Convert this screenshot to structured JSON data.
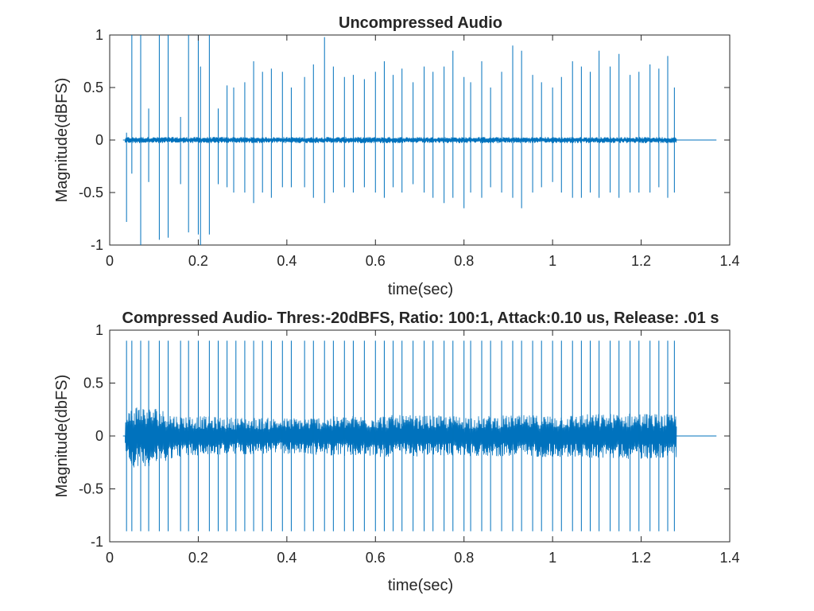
{
  "colors": {
    "series": "#0072BD",
    "axes": "#262626",
    "background": "#ffffff"
  },
  "chart_data": [
    {
      "type": "line",
      "title": "Uncompressed Audio",
      "xlabel": "time(sec)",
      "ylabel": "Magnitude(dBFS)",
      "xlim": [
        0,
        1.4
      ],
      "ylim": [
        -1,
        1
      ],
      "xticks": [
        0,
        0.2,
        0.4,
        0.6,
        0.8,
        1,
        1.2,
        1.4
      ],
      "xtick_labels": [
        "0",
        "0.2",
        "0.4",
        "0.6",
        "0.8",
        "1",
        "1.2",
        "1.4"
      ],
      "yticks": [
        -1,
        -0.5,
        0,
        0.5,
        1
      ],
      "ytick_labels": [
        "-1",
        "-0.5",
        "0",
        "0.5",
        "1"
      ],
      "grid": false,
      "series": [
        {
          "signal_start": 0.035,
          "signal_end": 1.28,
          "trace_end": 1.37,
          "noise_floor": 0.03,
          "spikes": [
            {
              "t": 0.038,
              "max": 0.07,
              "min": -0.78
            },
            {
              "t": 0.05,
              "max": 1.0,
              "min": -0.32
            },
            {
              "t": 0.07,
              "max": 1.0,
              "min": -1.0
            },
            {
              "t": 0.088,
              "max": 0.3,
              "min": -0.4
            },
            {
              "t": 0.112,
              "max": 1.0,
              "min": -0.95
            },
            {
              "t": 0.132,
              "max": 1.0,
              "min": -0.93
            },
            {
              "t": 0.16,
              "max": 0.22,
              "min": -0.42
            },
            {
              "t": 0.178,
              "max": 1.0,
              "min": -0.88
            },
            {
              "t": 0.2,
              "max": 1.0,
              "min": -0.9
            },
            {
              "t": 0.205,
              "max": 0.7,
              "min": -1.0
            },
            {
              "t": 0.225,
              "max": 1.0,
              "min": -0.9
            },
            {
              "t": 0.245,
              "max": 0.3,
              "min": -0.42
            },
            {
              "t": 0.265,
              "max": 0.52,
              "min": -0.45
            },
            {
              "t": 0.28,
              "max": 0.5,
              "min": -0.5
            },
            {
              "t": 0.305,
              "max": 0.55,
              "min": -0.5
            },
            {
              "t": 0.325,
              "max": 0.75,
              "min": -0.6
            },
            {
              "t": 0.345,
              "max": 0.65,
              "min": -0.5
            },
            {
              "t": 0.365,
              "max": 0.68,
              "min": -0.55
            },
            {
              "t": 0.39,
              "max": 0.65,
              "min": -0.45
            },
            {
              "t": 0.41,
              "max": 0.5,
              "min": -0.45
            },
            {
              "t": 0.44,
              "max": 0.6,
              "min": -0.45
            },
            {
              "t": 0.46,
              "max": 0.72,
              "min": -0.55
            },
            {
              "t": 0.485,
              "max": 0.98,
              "min": -0.6
            },
            {
              "t": 0.505,
              "max": 0.7,
              "min": -0.5
            },
            {
              "t": 0.53,
              "max": 0.6,
              "min": -0.45
            },
            {
              "t": 0.55,
              "max": 0.62,
              "min": -0.5
            },
            {
              "t": 0.575,
              "max": 0.58,
              "min": -0.45
            },
            {
              "t": 0.6,
              "max": 0.65,
              "min": -0.5
            },
            {
              "t": 0.62,
              "max": 0.75,
              "min": -0.55
            },
            {
              "t": 0.64,
              "max": 0.62,
              "min": -0.45
            },
            {
              "t": 0.66,
              "max": 0.68,
              "min": -0.5
            },
            {
              "t": 0.685,
              "max": 0.55,
              "min": -0.42
            },
            {
              "t": 0.71,
              "max": 0.7,
              "min": -0.5
            },
            {
              "t": 0.73,
              "max": 0.65,
              "min": -0.55
            },
            {
              "t": 0.755,
              "max": 0.7,
              "min": -0.6
            },
            {
              "t": 0.775,
              "max": 0.85,
              "min": -0.55
            },
            {
              "t": 0.8,
              "max": 0.6,
              "min": -0.65
            },
            {
              "t": 0.815,
              "max": 0.55,
              "min": -0.5
            },
            {
              "t": 0.84,
              "max": 0.75,
              "min": -0.55
            },
            {
              "t": 0.86,
              "max": 0.5,
              "min": -0.45
            },
            {
              "t": 0.885,
              "max": 0.65,
              "min": -0.5
            },
            {
              "t": 0.91,
              "max": 0.9,
              "min": -0.55
            },
            {
              "t": 0.93,
              "max": 0.85,
              "min": -0.65
            },
            {
              "t": 0.955,
              "max": 0.62,
              "min": -0.5
            },
            {
              "t": 0.975,
              "max": 0.55,
              "min": -0.45
            },
            {
              "t": 1.0,
              "max": 0.5,
              "min": -0.4
            },
            {
              "t": 1.02,
              "max": 0.6,
              "min": -0.5
            },
            {
              "t": 1.045,
              "max": 0.75,
              "min": -0.55
            },
            {
              "t": 1.065,
              "max": 0.7,
              "min": -0.55
            },
            {
              "t": 1.085,
              "max": 0.65,
              "min": -0.5
            },
            {
              "t": 1.105,
              "max": 0.85,
              "min": -0.55
            },
            {
              "t": 1.13,
              "max": 0.7,
              "min": -0.5
            },
            {
              "t": 1.15,
              "max": 0.82,
              "min": -0.55
            },
            {
              "t": 1.175,
              "max": 0.62,
              "min": -0.5
            },
            {
              "t": 1.195,
              "max": 0.65,
              "min": -0.5
            },
            {
              "t": 1.22,
              "max": 0.72,
              "min": -0.5
            },
            {
              "t": 1.24,
              "max": 0.68,
              "min": -0.45
            },
            {
              "t": 1.26,
              "max": 0.8,
              "min": -0.55
            },
            {
              "t": 1.275,
              "max": 0.5,
              "min": -0.5
            }
          ]
        }
      ]
    },
    {
      "type": "line",
      "title": "Compressed Audio- Thres:-20dBFS, Ratio: 100:1, Attack:0.10 us, Release: .01 s",
      "xlabel": "time(sec)",
      "ylabel": "Magnitude(dbFS)",
      "xlim": [
        0,
        1.4
      ],
      "ylim": [
        -1,
        1
      ],
      "xticks": [
        0,
        0.2,
        0.4,
        0.6,
        0.8,
        1,
        1.2,
        1.4
      ],
      "xtick_labels": [
        "0",
        "0.2",
        "0.4",
        "0.6",
        "0.8",
        "1",
        "1.2",
        "1.4"
      ],
      "yticks": [
        -1,
        -0.5,
        0,
        0.5,
        1
      ],
      "ytick_labels": [
        "-1",
        "-0.5",
        "0",
        "0.5",
        "1"
      ],
      "grid": false,
      "series": [
        {
          "signal_start": 0.035,
          "signal_end": 1.28,
          "trace_end": 1.37,
          "envelope": [
            {
              "t": 0.035,
              "a": 0.15
            },
            {
              "t": 0.05,
              "a": 0.3
            },
            {
              "t": 0.1,
              "a": 0.28
            },
            {
              "t": 0.15,
              "a": 0.2
            },
            {
              "t": 0.25,
              "a": 0.18
            },
            {
              "t": 0.4,
              "a": 0.17
            },
            {
              "t": 0.6,
              "a": 0.2
            },
            {
              "t": 0.8,
              "a": 0.19
            },
            {
              "t": 1.0,
              "a": 0.2
            },
            {
              "t": 1.2,
              "a": 0.22
            },
            {
              "t": 1.28,
              "a": 0.2
            }
          ],
          "spike_max": 0.9,
          "spike_min": -0.9,
          "spike_times": [
            0.038,
            0.05,
            0.07,
            0.088,
            0.112,
            0.132,
            0.16,
            0.178,
            0.2,
            0.225,
            0.245,
            0.265,
            0.285,
            0.305,
            0.325,
            0.345,
            0.365,
            0.39,
            0.41,
            0.44,
            0.46,
            0.485,
            0.505,
            0.53,
            0.55,
            0.575,
            0.6,
            0.62,
            0.64,
            0.66,
            0.685,
            0.71,
            0.73,
            0.755,
            0.775,
            0.8,
            0.815,
            0.84,
            0.86,
            0.885,
            0.91,
            0.93,
            0.955,
            0.975,
            1.0,
            1.02,
            1.045,
            1.065,
            1.085,
            1.105,
            1.13,
            1.15,
            1.175,
            1.195,
            1.22,
            1.24,
            1.26,
            1.275
          ]
        }
      ]
    }
  ]
}
